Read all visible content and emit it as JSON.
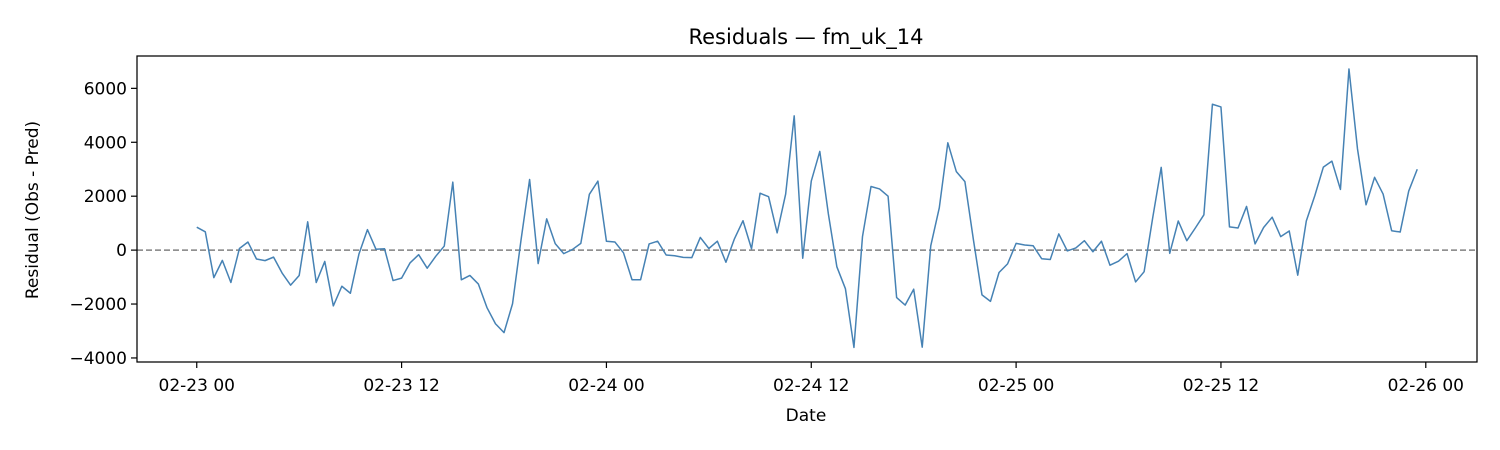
{
  "chart_data": {
    "type": "line",
    "title": "Residuals — fm_uk_14",
    "xlabel": "Date",
    "ylabel": "Residual (Obs - Pred)",
    "x_start": "2023-02-23T00:00",
    "x_step_hours": 0.5,
    "x_ticks": [
      {
        "value": "2023-02-23T00:00",
        "label": "02-23 00"
      },
      {
        "value": "2023-02-23T12:00",
        "label": "02-23 12"
      },
      {
        "value": "2023-02-24T00:00",
        "label": "02-24 00"
      },
      {
        "value": "2023-02-24T12:00",
        "label": "02-24 12"
      },
      {
        "value": "2023-02-25T00:00",
        "label": "02-25 00"
      },
      {
        "value": "2023-02-25T12:00",
        "label": "02-25 12"
      },
      {
        "value": "2023-02-26T00:00",
        "label": "02-26 00"
      }
    ],
    "xlim": [
      "2023-02-22T20:30",
      "2023-02-26T03:00"
    ],
    "y_ticks": [
      -4000,
      -2000,
      0,
      2000,
      4000,
      6000
    ],
    "y_tick_labels": [
      "−4000",
      "−2000",
      "0",
      "2000",
      "4000",
      "6000"
    ],
    "ylim": [
      -4150,
      7200
    ],
    "reference_line": {
      "y": 0,
      "style": "dashed",
      "color": "#808080"
    },
    "grid": false,
    "series": [
      {
        "color": "#4682b4",
        "y": [
          850,
          680,
          -1020,
          -380,
          -1200,
          60,
          300,
          -330,
          -390,
          -260,
          -850,
          -1300,
          -940,
          1050,
          -1200,
          -420,
          -2070,
          -1340,
          -1600,
          -150,
          760,
          30,
          50,
          -1130,
          -1040,
          -470,
          -170,
          -670,
          -230,
          150,
          2520,
          -1100,
          -940,
          -1260,
          -2130,
          -2730,
          -3060,
          -1990,
          390,
          2620,
          -500,
          1160,
          240,
          -130,
          20,
          250,
          2070,
          2560,
          330,
          300,
          -100,
          -1100,
          -1100,
          230,
          330,
          -180,
          -210,
          -270,
          -280,
          470,
          60,
          330,
          -450,
          420,
          1090,
          50,
          2110,
          1980,
          640,
          2080,
          4980,
          -300,
          2560,
          3660,
          1350,
          -620,
          -1430,
          -3610,
          500,
          2360,
          2270,
          2000,
          -1760,
          -2040,
          -1450,
          -3600,
          160,
          1570,
          3980,
          2910,
          2540,
          380,
          -1660,
          -1900,
          -830,
          -510,
          250,
          190,
          160,
          -320,
          -350,
          600,
          -30,
          80,
          350,
          -60,
          330,
          -560,
          -410,
          -130,
          -1180,
          -800,
          1190,
          3070,
          -120,
          1080,
          350,
          820,
          1310,
          5410,
          5310,
          860,
          820,
          1620,
          230,
          840,
          1220,
          500,
          710,
          -930,
          1080,
          2020,
          3080,
          3300,
          2250,
          6720,
          3750,
          1680,
          2700,
          2080,
          720,
          670,
          2190,
          3000
        ]
      }
    ]
  }
}
